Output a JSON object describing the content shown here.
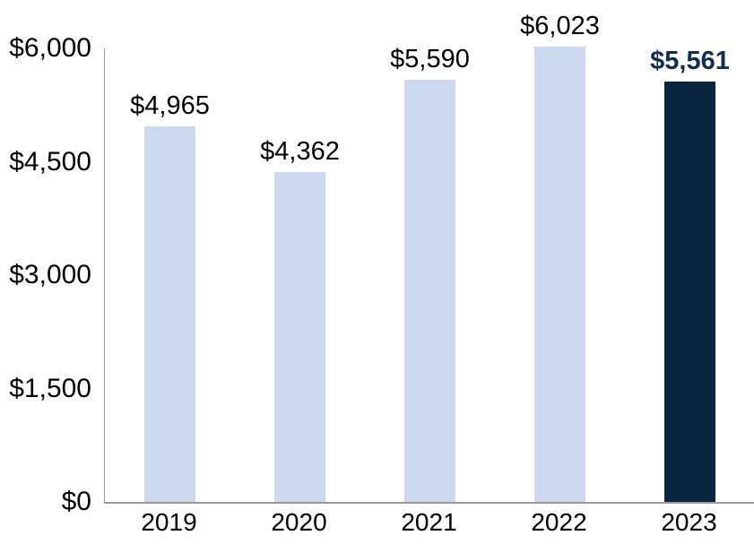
{
  "chart_data": {
    "type": "bar",
    "categories": [
      "2019",
      "2020",
      "2021",
      "2022",
      "2023"
    ],
    "values": [
      4965,
      4362,
      5590,
      6023,
      5561
    ],
    "value_labels": [
      "$4,965",
      "$4,362",
      "$5,590",
      "$6,023",
      "$5,561"
    ],
    "highlight_index": 4,
    "y_ticks": [
      {
        "value": 0,
        "label": "$0"
      },
      {
        "value": 1500,
        "label": "$1,500"
      },
      {
        "value": 3000,
        "label": "$3,000"
      },
      {
        "value": 4500,
        "label": "$4,500"
      },
      {
        "value": 6000,
        "label": "$6,000"
      }
    ],
    "ylim": [
      0,
      6000
    ],
    "grid": false,
    "legend_position": "none",
    "colors": {
      "bar": "#CCD9EE",
      "highlight_bar": "#0A2540",
      "value_label": "#000000",
      "highlight_value_label": "#132E4F",
      "tick_label": "#000000",
      "axis_line": "#999999"
    }
  }
}
